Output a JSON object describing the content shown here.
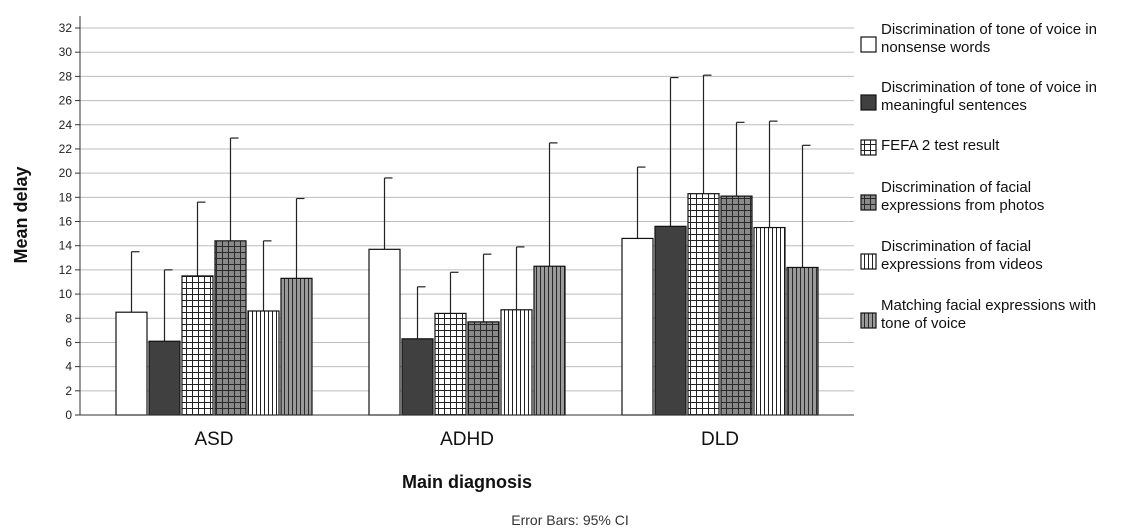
{
  "chart_data": {
    "type": "bar",
    "title": "",
    "xlabel": "Main diagnosis",
    "ylabel": "Mean delay",
    "ylim": [
      0,
      32
    ],
    "yticks": [
      0,
      2,
      4,
      6,
      8,
      10,
      12,
      14,
      16,
      18,
      20,
      22,
      24,
      26,
      28,
      30,
      32
    ],
    "grid": "horizontal",
    "legend_position": "right",
    "footnote": "Error Bars: 95% CI",
    "categories": [
      "ASD",
      "ADHD",
      "DLD"
    ],
    "series": [
      {
        "name": "Discrimination of tone of voice in nonsense words",
        "pattern": "white",
        "values": [
          8.5,
          13.7,
          14.6
        ],
        "ci_upper": [
          13.5,
          19.6,
          20.5
        ]
      },
      {
        "name": "Discrimination of tone of voice in meaningful sentences",
        "pattern": "dark",
        "values": [
          6.1,
          6.3,
          15.6
        ],
        "ci_upper": [
          12.0,
          10.6,
          27.9
        ]
      },
      {
        "name": "FEFA 2 test result",
        "pattern": "grid-white",
        "values": [
          11.5,
          8.4,
          18.3
        ],
        "ci_upper": [
          17.6,
          11.8,
          28.1
        ]
      },
      {
        "name": "Discrimination of facial expressions from photos",
        "pattern": "grid-gray",
        "values": [
          14.4,
          7.7,
          18.1
        ],
        "ci_upper": [
          22.9,
          13.3,
          24.2
        ]
      },
      {
        "name": "Discrimination of facial expressions from videos",
        "pattern": "vlines-white",
        "values": [
          8.6,
          8.7,
          15.5
        ],
        "ci_upper": [
          14.4,
          13.9,
          24.3
        ]
      },
      {
        "name": "Matching facial expressions with tone of voice",
        "pattern": "vlines-gray",
        "values": [
          11.3,
          12.3,
          12.2
        ],
        "ci_upper": [
          17.9,
          22.5,
          22.3
        ]
      }
    ]
  }
}
